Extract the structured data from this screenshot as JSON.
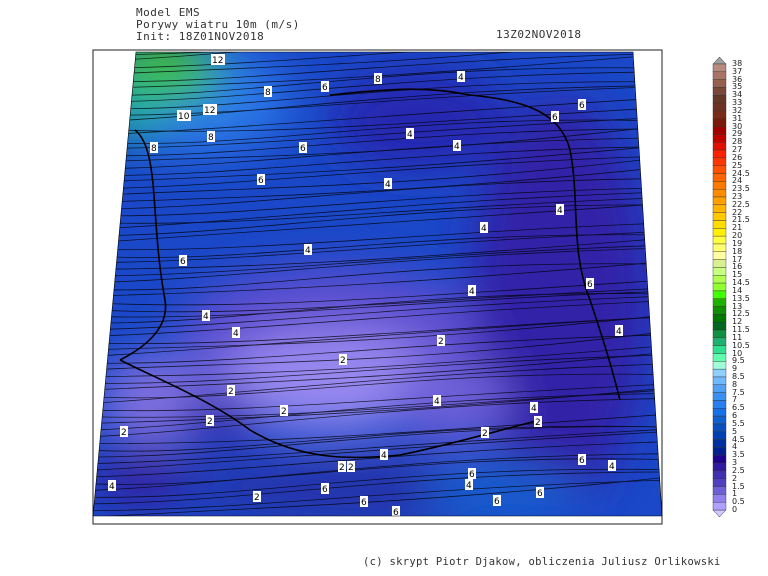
{
  "header": {
    "model": "Model EMS",
    "variable": "Porywy wiatru 10m (m/s)",
    "init": "Init: 18Z01NOV2018",
    "valid_time": "13Z02NOV2018"
  },
  "credit": "(c) skrypt Piotr Djakow, obliczenia Juliusz Orlikowski",
  "colorbar": {
    "labels": [
      "38",
      "37",
      "36",
      "35",
      "34",
      "33",
      "32",
      "31",
      "30",
      "29",
      "28",
      "27",
      "26",
      "25",
      "24.5",
      "24",
      "23.5",
      "23",
      "22.5",
      "22",
      "21.5",
      "21",
      "20",
      "19",
      "18",
      "17",
      "16",
      "15",
      "14.5",
      "14",
      "13.5",
      "13",
      "12.5",
      "12",
      "11.5",
      "11",
      "10.5",
      "10",
      "9.5",
      "9",
      "8.5",
      "8",
      "7.5",
      "7",
      "6.5",
      "6",
      "5.5",
      "5",
      "4.5",
      "4",
      "3.5",
      "3",
      "2.5",
      "2",
      "1.5",
      "1",
      "0.5",
      "0"
    ],
    "colors": [
      "#b88a80",
      "#a87468",
      "#956050",
      "#7a4838",
      "#653828",
      "#6e3020",
      "#7a2a18",
      "#7a1a0a",
      "#a00000",
      "#c00000",
      "#e01000",
      "#ff2000",
      "#ff3800",
      "#ff5000",
      "#ff6400",
      "#ff7800",
      "#ff8c00",
      "#ffa000",
      "#ffb400",
      "#ffc800",
      "#ffdc00",
      "#fff000",
      "#ffff40",
      "#ffff70",
      "#ffffa0",
      "#d8f090",
      "#c8ff80",
      "#b0ff50",
      "#90ff30",
      "#40ff00",
      "#20b000",
      "#109000",
      "#007800",
      "#006820",
      "#109040",
      "#20b070",
      "#30e090",
      "#60ffb0",
      "#a0ffd8",
      "#90d0ff",
      "#70b8ff",
      "#50a0f8",
      "#3890f0",
      "#2880f0",
      "#1870e8",
      "#1060d0",
      "#0850c0",
      "#0040b0",
      "#0030a0",
      "#002090",
      "#200090",
      "#3018a0",
      "#4030b0",
      "#5040c0",
      "#7060d8",
      "#9080f0",
      "#b0a0ff"
    ],
    "over_color": "#a0a0a0",
    "under_color": "#d0c8ff"
  },
  "contour_labels": [
    "12",
    "10",
    "12",
    "8",
    "8",
    "8",
    "6",
    "8",
    "6",
    "6",
    "6",
    "4",
    "4",
    "4",
    "6",
    "6",
    "4",
    "4",
    "4",
    "4",
    "4",
    "4",
    "4",
    "6",
    "2",
    "2",
    "4",
    "2",
    "2",
    "2",
    "4",
    "4",
    "2",
    "2",
    "2",
    "4",
    "2",
    "2",
    "2",
    "6",
    "6",
    "6",
    "6",
    "4",
    "4",
    "6",
    "6",
    "4",
    "6"
  ]
}
